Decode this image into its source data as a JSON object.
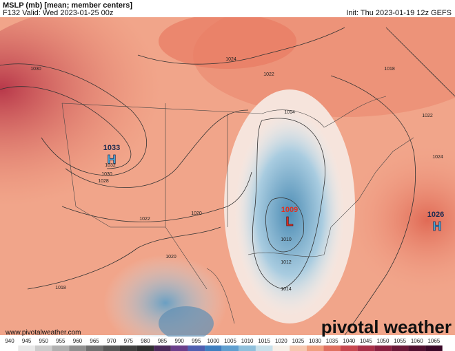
{
  "header": {
    "title": "MSLP (mb) [mean; member centers]",
    "valid": "F132 Valid: Wed 2023-01-25 00z",
    "init": "Init: Thu 2023-01-19 12z GEFS"
  },
  "centers": [
    {
      "type": "H",
      "value": 1033
    },
    {
      "type": "L",
      "value": 1009
    },
    {
      "type": "H",
      "value": 1026
    }
  ],
  "isobar_labels": [
    1030,
    1024,
    1022,
    1018,
    1022,
    1024,
    1032,
    1030,
    1028,
    1022,
    1020,
    1020,
    1018,
    1010,
    1012,
    1014,
    1014
  ],
  "footer": {
    "website": "www.pivotalweather.com",
    "brand": "pivotal weather"
  },
  "colorbar": [
    940,
    945,
    950,
    955,
    960,
    965,
    970,
    975,
    980,
    985,
    990,
    995,
    1000,
    1005,
    1010,
    1015,
    1020,
    1025,
    1030,
    1035,
    1040,
    1045,
    1050,
    1055,
    1060,
    1065
  ]
}
